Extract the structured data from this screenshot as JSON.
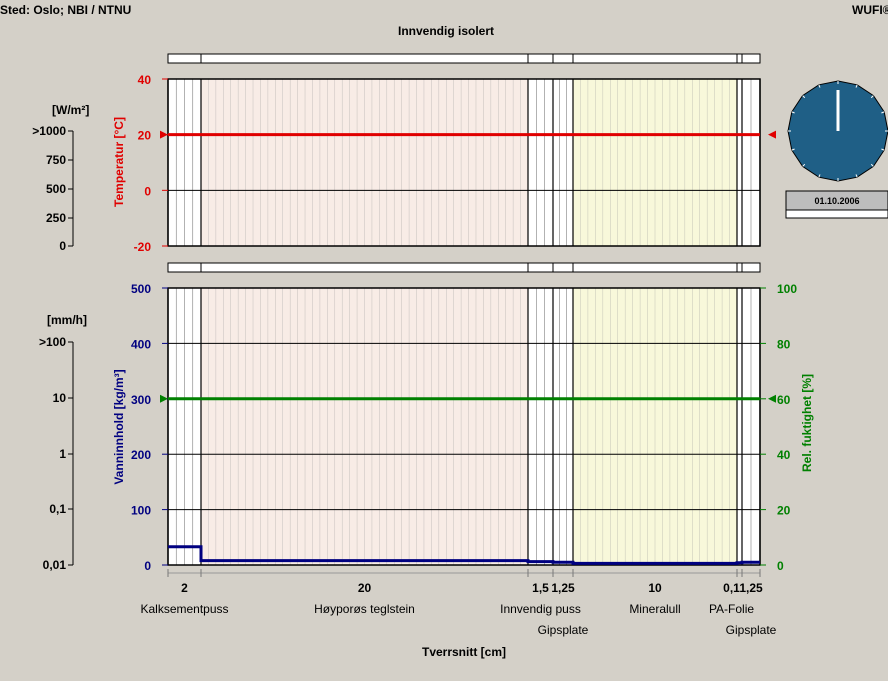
{
  "header": {
    "location": "Sted: Oslo; NBI / NTNU",
    "app_name": "WUFI®",
    "title": "Innvendig isolert"
  },
  "clock": {
    "date": "01.10.2006",
    "face_color": "#1f5f86"
  },
  "colors": {
    "temperature": "#e00000",
    "water": "#000080",
    "rh": "#008000",
    "layer_plaster": "#ffffff",
    "layer_brick": "#f8ece6",
    "layer_mineralwool": "#f8f8da",
    "layer_gypsum": "#ffffff"
  },
  "left_scales": {
    "radiation": {
      "unit": "[W/m²]",
      "ticks": [
        ">1000",
        "750",
        "500",
        "250",
        "0"
      ]
    },
    "rain": {
      "unit": "[mm/h]",
      "ticks": [
        ">100",
        "10",
        "1",
        "0,1",
        "0,01"
      ]
    }
  },
  "layers": [
    {
      "thickness": 2,
      "thickness_label": "2",
      "name": "Kalksementpuss",
      "name_row": 1,
      "material": "plaster"
    },
    {
      "thickness": 20,
      "thickness_label": "20",
      "name": "Høyporøs teglstein",
      "name_row": 1,
      "material": "brick"
    },
    {
      "thickness": 1.5,
      "thickness_label": "1,5",
      "name": "Innvendig puss",
      "name_row": 1,
      "material": "plaster"
    },
    {
      "thickness": 1.25,
      "thickness_label": "1,25",
      "name": "Gipsplate",
      "name_row": 2,
      "material": "gypsum"
    },
    {
      "thickness": 10,
      "thickness_label": "10",
      "name": "Mineralull",
      "name_row": 1,
      "material": "mineralwool"
    },
    {
      "thickness": 0.1,
      "thickness_label": "0,1",
      "name": "PA-Folie",
      "name_row": 1,
      "material": "foil"
    },
    {
      "thickness": 1.25,
      "thickness_label": "1,25",
      "name": "Gipsplate",
      "name_row": 2,
      "material": "gypsum"
    }
  ],
  "chart_data": [
    {
      "type": "line",
      "ylabel": "Temperatur [°C]",
      "ylim": [
        -20,
        40
      ],
      "yticks": [
        40,
        20,
        0,
        -20
      ],
      "series": [
        {
          "x": [
            0,
            36.1
          ],
          "y": [
            20,
            20
          ],
          "color": "#e00000"
        }
      ],
      "markers": {
        "left": 20,
        "right": 20
      }
    },
    {
      "type": "line",
      "xlabel": "Tverrsnitt [cm]",
      "ylabel": "Vanninnhold [kg/m³]",
      "ylim": [
        0,
        500
      ],
      "yticks": [
        500,
        400,
        300,
        200,
        100,
        0
      ],
      "y2label": "Rel. fuktighet [%]",
      "y2lim": [
        0,
        100
      ],
      "y2ticks": [
        100,
        80,
        60,
        40,
        20,
        0
      ],
      "series": [
        {
          "axis": "y2",
          "x": [
            0,
            36.1
          ],
          "y": [
            60,
            60
          ],
          "color": "#008000"
        },
        {
          "axis": "y",
          "x": [
            0,
            2,
            2,
            22,
            22,
            23.5,
            23.5,
            24.75,
            24.75,
            34.75,
            34.75,
            34.85,
            34.85,
            36.1
          ],
          "y": [
            33,
            33,
            8,
            8,
            6,
            6,
            5,
            5,
            3,
            3,
            4,
            4,
            5,
            5
          ],
          "color": "#000080"
        }
      ],
      "markers": {
        "left": 60,
        "right": 60
      }
    }
  ]
}
